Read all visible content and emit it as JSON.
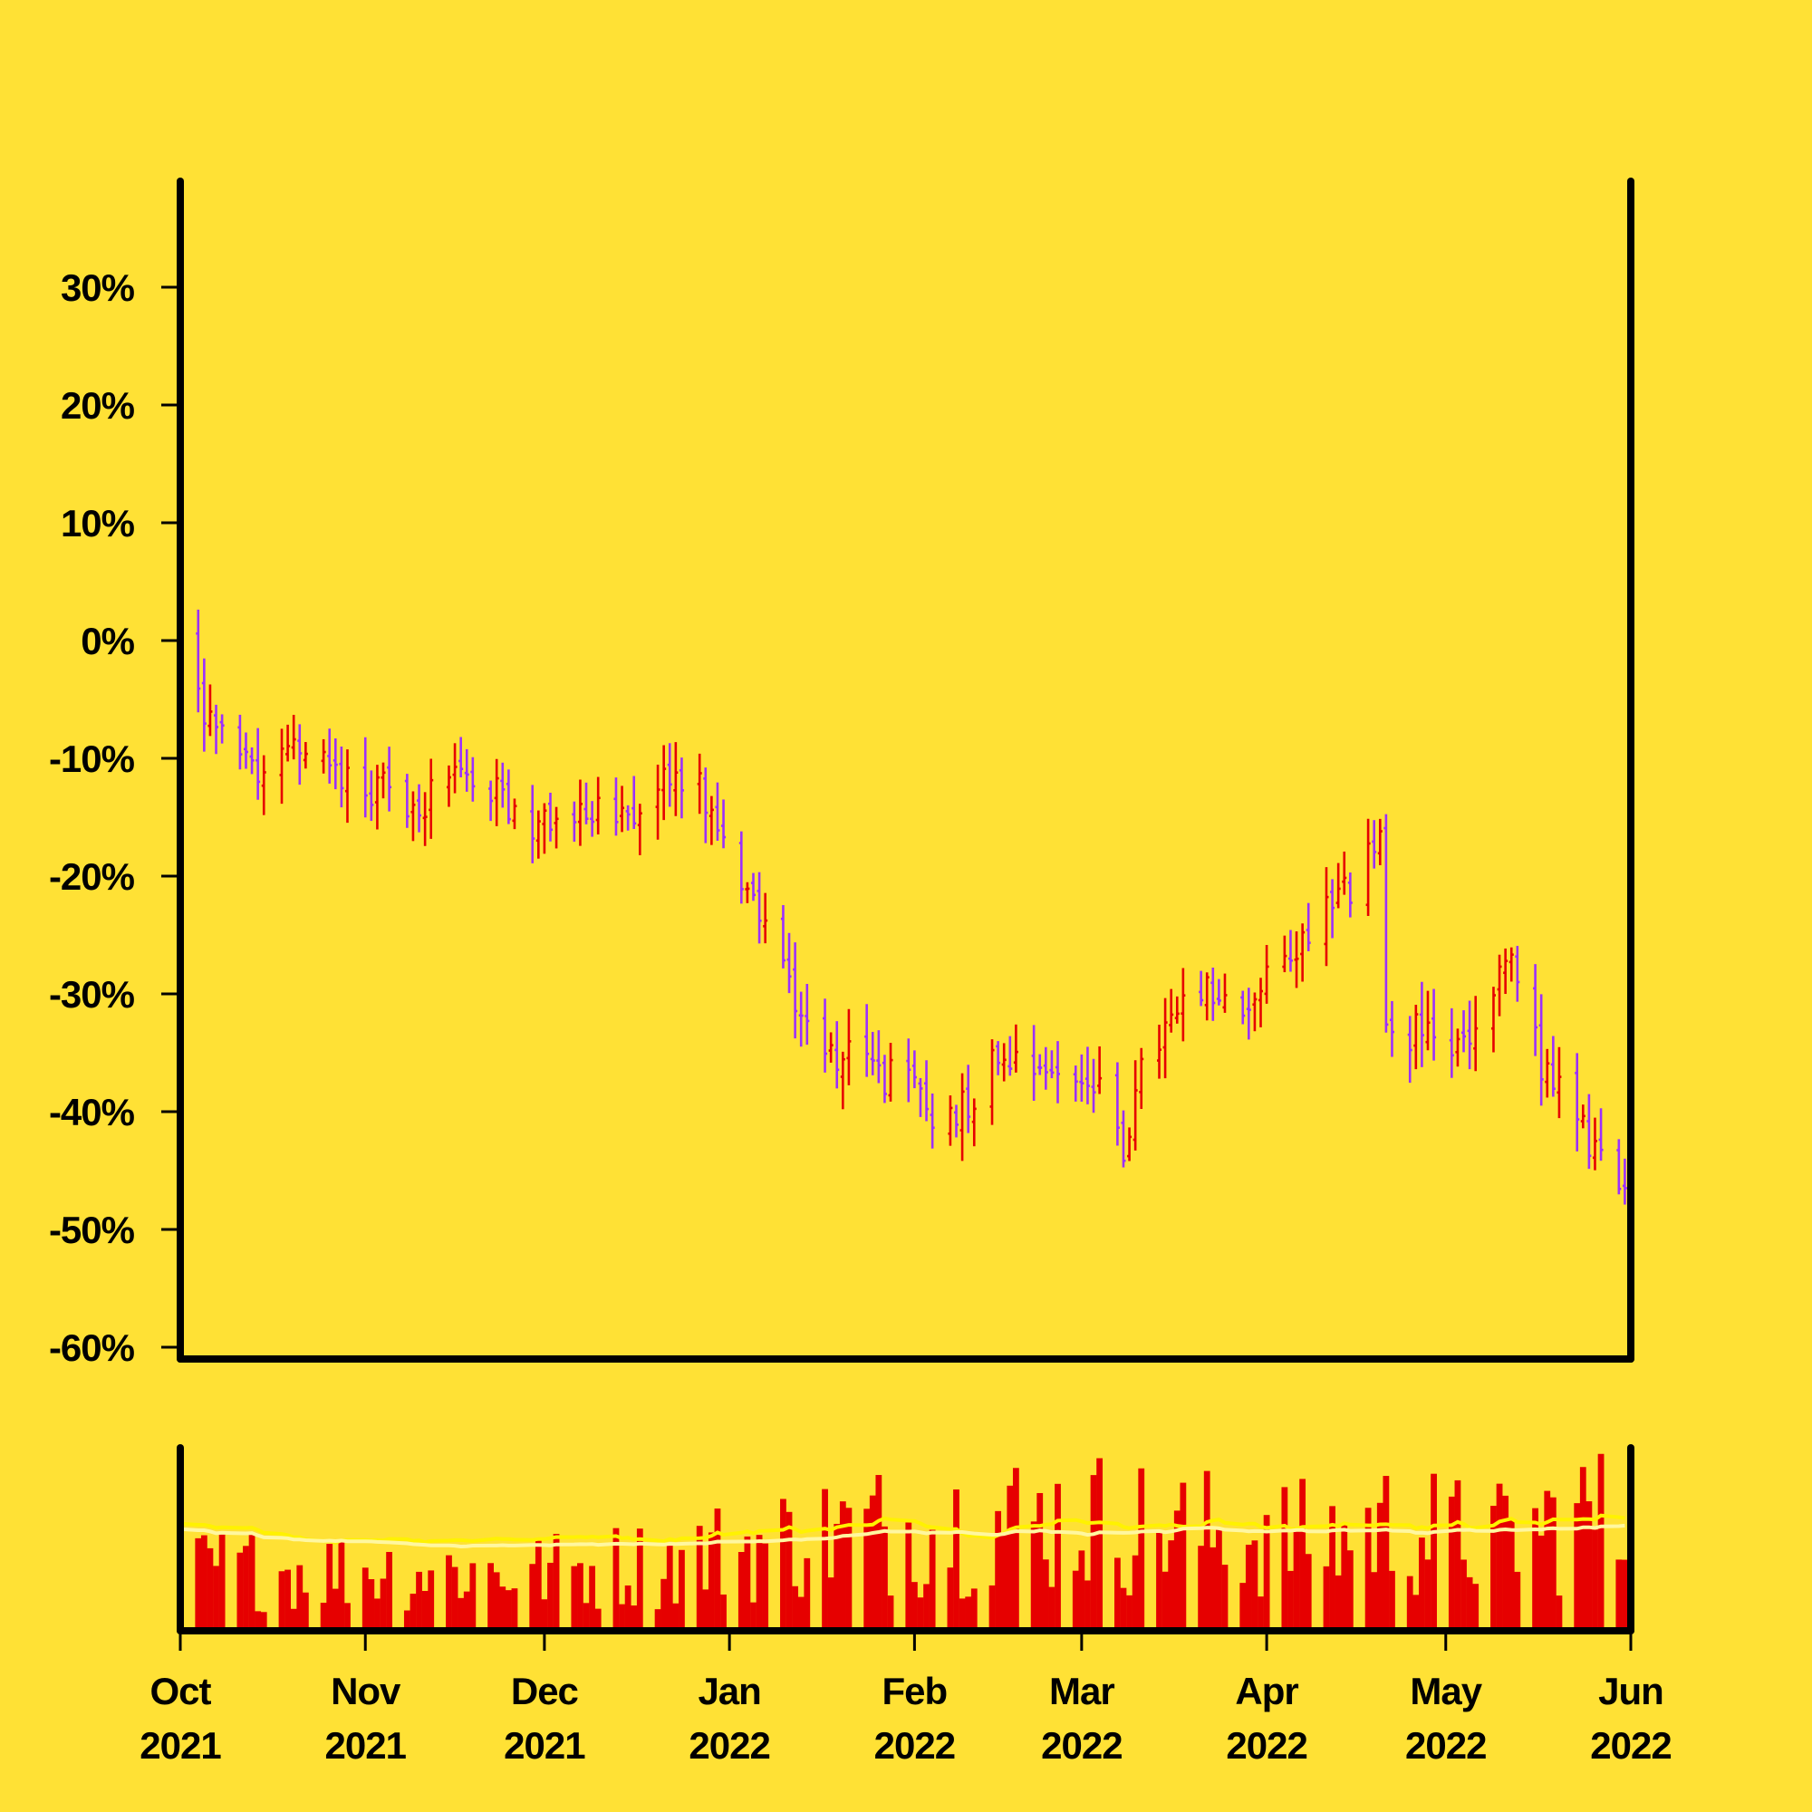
{
  "colors": {
    "background": "#FFE135",
    "up": "#E60000",
    "down": "#9B30FF",
    "volume": "#E60000",
    "volume_ma_fast": "#FFF200",
    "volume_ma_slow": "#FFF7A0",
    "axis": "#000000"
  },
  "chart_data": {
    "type": "ohlc",
    "title": "",
    "xlabel": "",
    "ylabel": "",
    "y_unit": "percent change from first close",
    "ylim": [
      -61,
      39
    ],
    "y_ticks": [
      30,
      20,
      10,
      0,
      -10,
      -20,
      -30,
      -40,
      -50,
      -60
    ],
    "y_tick_labels": [
      "30%",
      "20%",
      "10%",
      "0%",
      "-10%",
      "-20%",
      "-30%",
      "-40%",
      "-50%",
      "-60%"
    ],
    "x_range": [
      "2021-10-01",
      "2022-06-01"
    ],
    "x_ticks": [
      "2021-10-01",
      "2021-11-01",
      "2021-12-01",
      "2022-01-01",
      "2022-02-01",
      "2022-03-01",
      "2022-04-01",
      "2022-05-01",
      "2022-06-01"
    ],
    "x_tick_labels": [
      [
        "Oct",
        "2021"
      ],
      [
        "Nov",
        "2021"
      ],
      [
        "Dec",
        "2021"
      ],
      [
        "Jan",
        "2022"
      ],
      [
        "Feb",
        "2022"
      ],
      [
        "Mar",
        "2022"
      ],
      [
        "Apr",
        "2022"
      ],
      [
        "May",
        "2022"
      ],
      [
        "Jun",
        "2022"
      ]
    ],
    "grid": false,
    "legend": "none",
    "price_close_path": [
      [
        "2021-10-01",
        0
      ],
      [
        "2021-10-05",
        -6
      ],
      [
        "2021-10-10",
        -10
      ],
      [
        "2021-10-15",
        -12
      ],
      [
        "2021-10-20",
        -9
      ],
      [
        "2021-10-25",
        -10
      ],
      [
        "2021-10-31",
        -12
      ],
      [
        "2021-11-05",
        -13
      ],
      [
        "2021-11-10",
        -14
      ],
      [
        "2021-11-15",
        -11
      ],
      [
        "2021-11-20",
        -12
      ],
      [
        "2021-11-25",
        -14
      ],
      [
        "2021-11-30",
        -16
      ],
      [
        "2021-12-05",
        -15
      ],
      [
        "2021-12-10",
        -14
      ],
      [
        "2021-12-15",
        -16
      ],
      [
        "2021-12-20",
        -12
      ],
      [
        "2021-12-25",
        -11
      ],
      [
        "2021-12-27",
        -12
      ],
      [
        "2021-12-30",
        -17
      ],
      [
        "2022-01-03",
        -20
      ],
      [
        "2022-01-07",
        -24
      ],
      [
        "2022-01-12",
        -30
      ],
      [
        "2022-01-17",
        -35
      ],
      [
        "2022-01-22",
        -35
      ],
      [
        "2022-01-27",
        -37
      ],
      [
        "2022-02-01",
        -38
      ],
      [
        "2022-02-05",
        -41
      ],
      [
        "2022-02-10",
        -39
      ],
      [
        "2022-02-15",
        -35
      ],
      [
        "2022-02-20",
        -35
      ],
      [
        "2022-02-25",
        -37
      ],
      [
        "2022-03-01",
        -37
      ],
      [
        "2022-03-05",
        -39
      ],
      [
        "2022-03-08",
        -43
      ],
      [
        "2022-03-12",
        -35
      ],
      [
        "2022-03-17",
        -32
      ],
      [
        "2022-03-22",
        -30
      ],
      [
        "2022-03-27",
        -32
      ],
      [
        "2022-04-01",
        -29
      ],
      [
        "2022-04-06",
        -26
      ],
      [
        "2022-04-11",
        -22
      ],
      [
        "2022-04-16",
        -21
      ],
      [
        "2022-04-20",
        -16
      ],
      [
        "2022-04-21",
        -34
      ],
      [
        "2022-04-26",
        -33
      ],
      [
        "2022-05-01",
        -35
      ],
      [
        "2022-05-05",
        -34
      ],
      [
        "2022-05-09",
        -30
      ],
      [
        "2022-05-12",
        -27
      ],
      [
        "2022-05-17",
        -36
      ],
      [
        "2022-05-22",
        -40
      ],
      [
        "2022-05-27",
        -44
      ],
      [
        "2022-05-31",
        -48
      ]
    ],
    "volume_panel": {
      "type": "bar",
      "series": "daily volume with two moving averages",
      "relative_level_path": [
        [
          "2021-10-01",
          0.35
        ],
        [
          "2021-11-01",
          0.34
        ],
        [
          "2021-12-01",
          0.33
        ],
        [
          "2021-12-20",
          0.38
        ],
        [
          "2022-01-01",
          0.45
        ],
        [
          "2022-01-20",
          0.55
        ],
        [
          "2022-02-10",
          0.6
        ],
        [
          "2022-03-01",
          0.62
        ],
        [
          "2022-03-20",
          0.55
        ],
        [
          "2022-04-10",
          0.5
        ],
        [
          "2022-04-20",
          0.58
        ],
        [
          "2022-05-10",
          0.5
        ],
        [
          "2022-05-25",
          0.65
        ],
        [
          "2022-05-31",
          0.55
        ]
      ]
    }
  }
}
